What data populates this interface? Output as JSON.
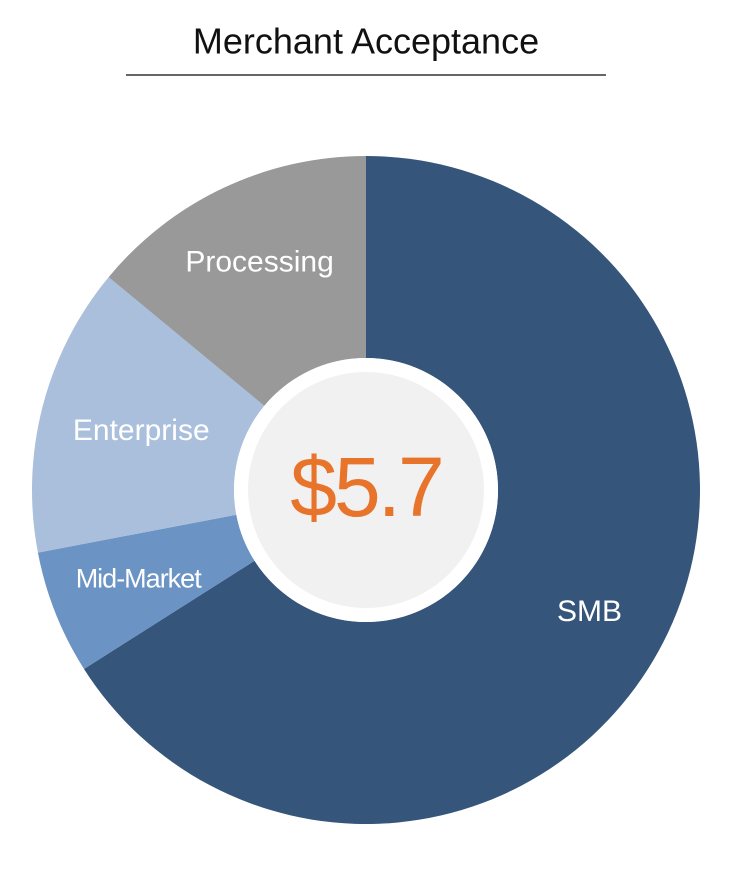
{
  "chart_data": {
    "type": "donut",
    "title": "Merchant Acceptance",
    "center_label": "$5.7",
    "categories": [
      "SMB",
      "Mid-Market",
      "Enterprise",
      "Processing"
    ],
    "values": [
      66,
      6,
      14,
      14
    ],
    "colors": [
      "#36557b",
      "#6b93c4",
      "#a9bfdc",
      "#999999"
    ],
    "center_color": "#e8732a"
  }
}
